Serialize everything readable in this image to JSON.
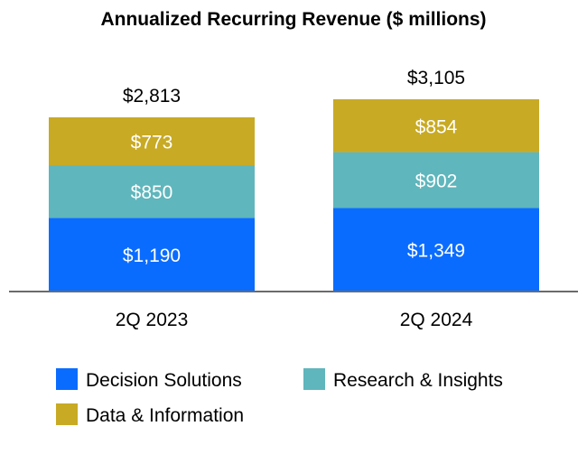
{
  "chart_data": {
    "type": "bar",
    "stacked": true,
    "title": "Annualized Recurring Revenue ($ millions)",
    "xlabel": "",
    "ylabel": "",
    "categories": [
      "2Q 2023",
      "2Q 2024"
    ],
    "totals": [
      "$2,813",
      "$3,105"
    ],
    "total_values": [
      2813,
      3105
    ],
    "series": [
      {
        "name": "Decision Solutions",
        "color": "#0a6cff",
        "values": [
          1190,
          1349
        ],
        "labels": [
          "$1,190",
          "$1,349"
        ]
      },
      {
        "name": "Research & Insights",
        "color": "#5fb6bc",
        "values": [
          850,
          902
        ],
        "labels": [
          "$850",
          "$902"
        ]
      },
      {
        "name": "Data & Information",
        "color": "#c8aa24",
        "values": [
          773,
          854
        ],
        "labels": [
          "$773",
          "$854"
        ]
      }
    ],
    "grid": false,
    "legend_position": "bottom"
  }
}
